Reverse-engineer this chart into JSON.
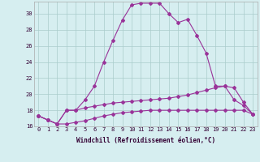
{
  "xlabel": "Windchill (Refroidissement éolien,°C)",
  "background_color": "#d6eef0",
  "grid_color": "#aacccc",
  "line_color": "#993399",
  "xlim": [
    -0.5,
    23.5
  ],
  "ylim": [
    16,
    31.5
  ],
  "yticks": [
    16,
    18,
    20,
    22,
    24,
    26,
    28,
    30
  ],
  "xticks": [
    0,
    1,
    2,
    3,
    4,
    5,
    6,
    7,
    8,
    9,
    10,
    11,
    12,
    13,
    14,
    15,
    16,
    17,
    18,
    19,
    20,
    21,
    22,
    23
  ],
  "hours": [
    0,
    1,
    2,
    3,
    4,
    5,
    6,
    7,
    8,
    9,
    10,
    11,
    12,
    13,
    14,
    15,
    16,
    17,
    18,
    19,
    20,
    21,
    22,
    23
  ],
  "temp1": [
    17.3,
    16.8,
    16.3,
    18.0,
    18.0,
    19.3,
    21.0,
    24.0,
    26.7,
    29.2,
    31.1,
    31.3,
    31.3,
    31.3,
    30.0,
    28.9,
    29.3,
    27.3,
    25.1,
    21.0,
    21.0,
    19.3,
    18.6,
    17.5
  ],
  "temp2": [
    17.3,
    16.8,
    16.3,
    18.0,
    18.0,
    18.3,
    18.5,
    18.7,
    18.9,
    19.0,
    19.1,
    19.2,
    19.3,
    19.4,
    19.5,
    19.7,
    19.9,
    20.2,
    20.5,
    20.8,
    21.0,
    20.8,
    19.0,
    17.5
  ],
  "temp3": [
    17.3,
    16.8,
    16.3,
    16.3,
    16.5,
    16.7,
    17.0,
    17.3,
    17.5,
    17.7,
    17.8,
    17.9,
    18.0,
    18.0,
    18.0,
    18.0,
    18.0,
    18.0,
    18.0,
    18.0,
    18.0,
    18.0,
    18.0,
    17.5
  ]
}
